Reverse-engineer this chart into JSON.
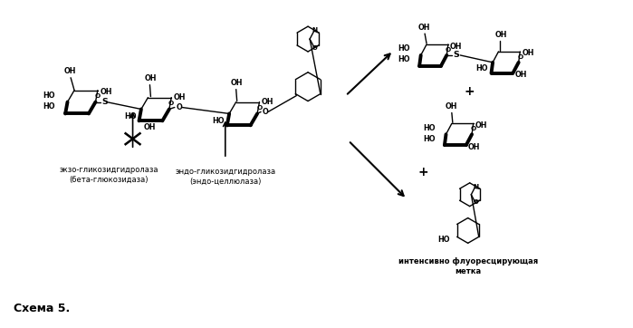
{
  "background_color": "#ffffff",
  "schema_label": "Схема 5.",
  "label_exo": "экзо-гликозидгидролаза\n(бета-глюкозидаза)",
  "label_endo": "эндо-гликозидгидролаза\n(эндо-целлюлаза)",
  "label_fluorescent": "интенсивно флуоресцирующая\nметка",
  "figsize": [
    6.99,
    3.62
  ],
  "dpi": 100
}
